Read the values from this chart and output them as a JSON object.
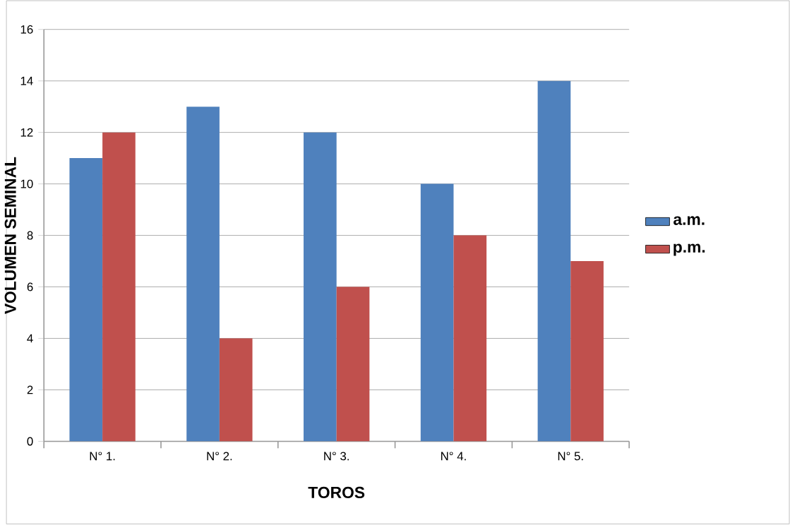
{
  "chart_data": {
    "type": "bar",
    "xlabel": "TOROS",
    "ylabel": "VOLUMEN SEMINAL",
    "categories": [
      "N° 1.",
      "N° 2.",
      "N° 3.",
      "N° 4.",
      "N° 5."
    ],
    "series": [
      {
        "name": "a.m.",
        "color": "#4f81bd",
        "values": [
          11,
          13,
          12,
          10,
          14
        ]
      },
      {
        "name": "p.m.",
        "color": "#c0504d",
        "values": [
          12,
          4,
          6,
          8,
          7
        ]
      }
    ],
    "ylim": [
      0,
      16
    ],
    "yticks": [
      0,
      2,
      4,
      6,
      8,
      10,
      12,
      14,
      16
    ],
    "grid": "y",
    "legend": "right"
  }
}
